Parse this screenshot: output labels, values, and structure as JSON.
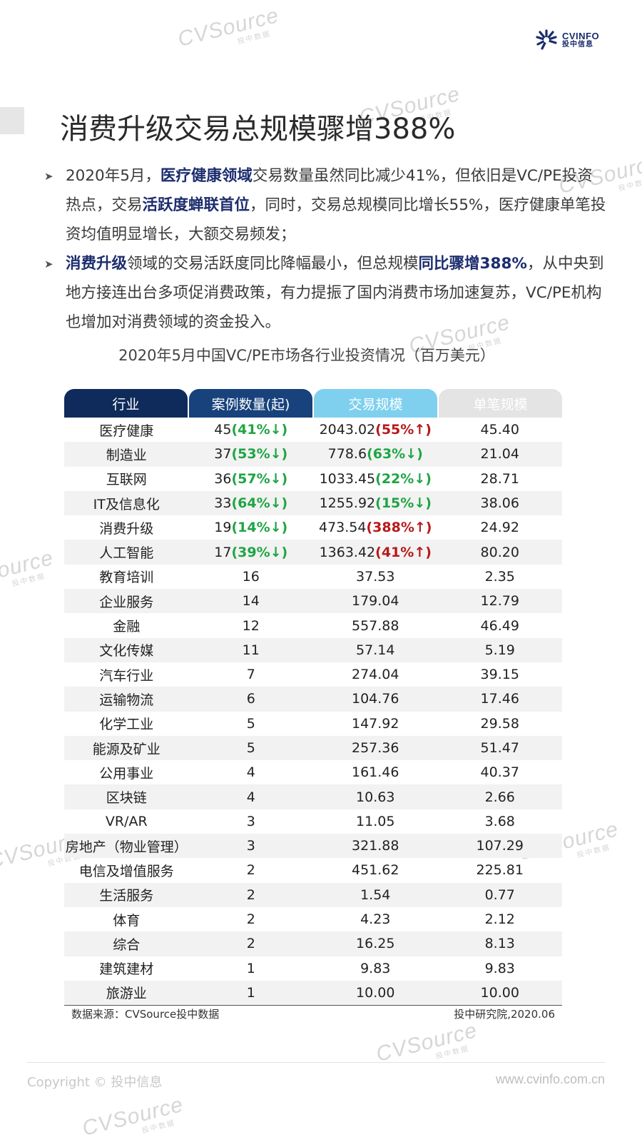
{
  "brand": {
    "logo_en": "CVINFO",
    "logo_cn": "投中信息"
  },
  "watermark": {
    "main": "CVSource",
    "sub": "投中数据"
  },
  "title": "消费升级交易总规模骤增388%",
  "bullets": [
    {
      "segments": [
        {
          "text": "2020年5月，",
          "bold": false
        },
        {
          "text": "医疗健康领域",
          "bold": true
        },
        {
          "text": "交易数量虽然同比减少41%，但依旧是VC/PE投资热点，交易",
          "bold": false
        },
        {
          "text": "活跃度蝉联首位",
          "bold": true
        },
        {
          "text": "，同时，交易总规模同比增长55%，医疗健康单笔投资均值明显增长，大额交易频发；",
          "bold": false
        }
      ]
    },
    {
      "segments": [
        {
          "text": "消费升级",
          "bold": true
        },
        {
          "text": "领域的交易活跃度同比降幅最小，但总规模",
          "bold": false
        },
        {
          "text": "同比骤增388%",
          "bold": true
        },
        {
          "text": "，从中央到地方接连出台多项促消费政策，有力提振了国内消费市场加速复苏，VC/PE机构也增加对消费领域的资金投入。",
          "bold": false
        }
      ]
    }
  ],
  "colors": {
    "header_dark": "#0f2b5b",
    "header_mid": "#17427c",
    "header_light": "#7fd0ee",
    "header_gray": "#e4e4e4",
    "up": "#b8191a",
    "down": "#1ea544"
  },
  "chart_data": {
    "type": "table",
    "title": "2020年5月中国VC/PE市场各行业投资情况（百万美元）",
    "columns": [
      "行业",
      "案例数量(起)",
      "交易规模",
      "单笔规模"
    ],
    "rows": [
      {
        "industry": "医疗健康",
        "cases": "45",
        "cases_chg": "(41%↓)",
        "cases_dir": "down",
        "amount": "2043.02",
        "amount_chg": "(55%↑)",
        "amount_dir": "up",
        "avg": "45.40"
      },
      {
        "industry": "制造业",
        "cases": "37",
        "cases_chg": "(53%↓)",
        "cases_dir": "down",
        "amount": "778.6",
        "amount_chg": "(63%↓)",
        "amount_dir": "down",
        "avg": "21.04"
      },
      {
        "industry": "互联网",
        "cases": "36",
        "cases_chg": "(57%↓)",
        "cases_dir": "down",
        "amount": "1033.45",
        "amount_chg": "(22%↓)",
        "amount_dir": "down",
        "avg": "28.71"
      },
      {
        "industry": "IT及信息化",
        "cases": "33",
        "cases_chg": "(64%↓)",
        "cases_dir": "down",
        "amount": "1255.92",
        "amount_chg": "(15%↓)",
        "amount_dir": "down",
        "avg": "38.06"
      },
      {
        "industry": "消费升级",
        "cases": "19",
        "cases_chg": "(14%↓)",
        "cases_dir": "down",
        "amount": "473.54",
        "amount_chg": "(388%↑)",
        "amount_dir": "up",
        "avg": "24.92"
      },
      {
        "industry": "人工智能",
        "cases": "17",
        "cases_chg": "(39%↓)",
        "cases_dir": "down",
        "amount": "1363.42",
        "amount_chg": "(41%↑)",
        "amount_dir": "up",
        "avg": "80.20"
      },
      {
        "industry": "教育培训",
        "cases": "16",
        "amount": "37.53",
        "avg": "2.35"
      },
      {
        "industry": "企业服务",
        "cases": "14",
        "amount": "179.04",
        "avg": "12.79"
      },
      {
        "industry": "金融",
        "cases": "12",
        "amount": "557.88",
        "avg": "46.49"
      },
      {
        "industry": "文化传媒",
        "cases": "11",
        "amount": "57.14",
        "avg": "5.19"
      },
      {
        "industry": "汽车行业",
        "cases": "7",
        "amount": "274.04",
        "avg": "39.15"
      },
      {
        "industry": "运输物流",
        "cases": "6",
        "amount": "104.76",
        "avg": "17.46"
      },
      {
        "industry": "化学工业",
        "cases": "5",
        "amount": "147.92",
        "avg": "29.58"
      },
      {
        "industry": "能源及矿业",
        "cases": "5",
        "amount": "257.36",
        "avg": "51.47"
      },
      {
        "industry": "公用事业",
        "cases": "4",
        "amount": "161.46",
        "avg": "40.37"
      },
      {
        "industry": "区块链",
        "cases": "4",
        "amount": "10.63",
        "avg": "2.66"
      },
      {
        "industry": "VR/AR",
        "cases": "3",
        "amount": "11.05",
        "avg": "3.68"
      },
      {
        "industry": "房地产（物业管理）",
        "cases": "3",
        "amount": "321.88",
        "avg": "107.29"
      },
      {
        "industry": "电信及增值服务",
        "cases": "2",
        "amount": "451.62",
        "avg": "225.81"
      },
      {
        "industry": "生活服务",
        "cases": "2",
        "amount": "1.54",
        "avg": "0.77"
      },
      {
        "industry": "体育",
        "cases": "2",
        "amount": "4.23",
        "avg": "2.12"
      },
      {
        "industry": "综合",
        "cases": "2",
        "amount": "16.25",
        "avg": "8.13"
      },
      {
        "industry": "建筑建材",
        "cases": "1",
        "amount": "9.83",
        "avg": "9.83"
      },
      {
        "industry": "旅游业",
        "cases": "1",
        "amount": "10.00",
        "avg": "10.00"
      }
    ]
  },
  "source": "数据来源：CVSource投中数据",
  "author": "投中研究院,2020.06",
  "footer": {
    "copyright": "Copyright © 投中信息",
    "site": "www.cvinfo.com.cn"
  }
}
